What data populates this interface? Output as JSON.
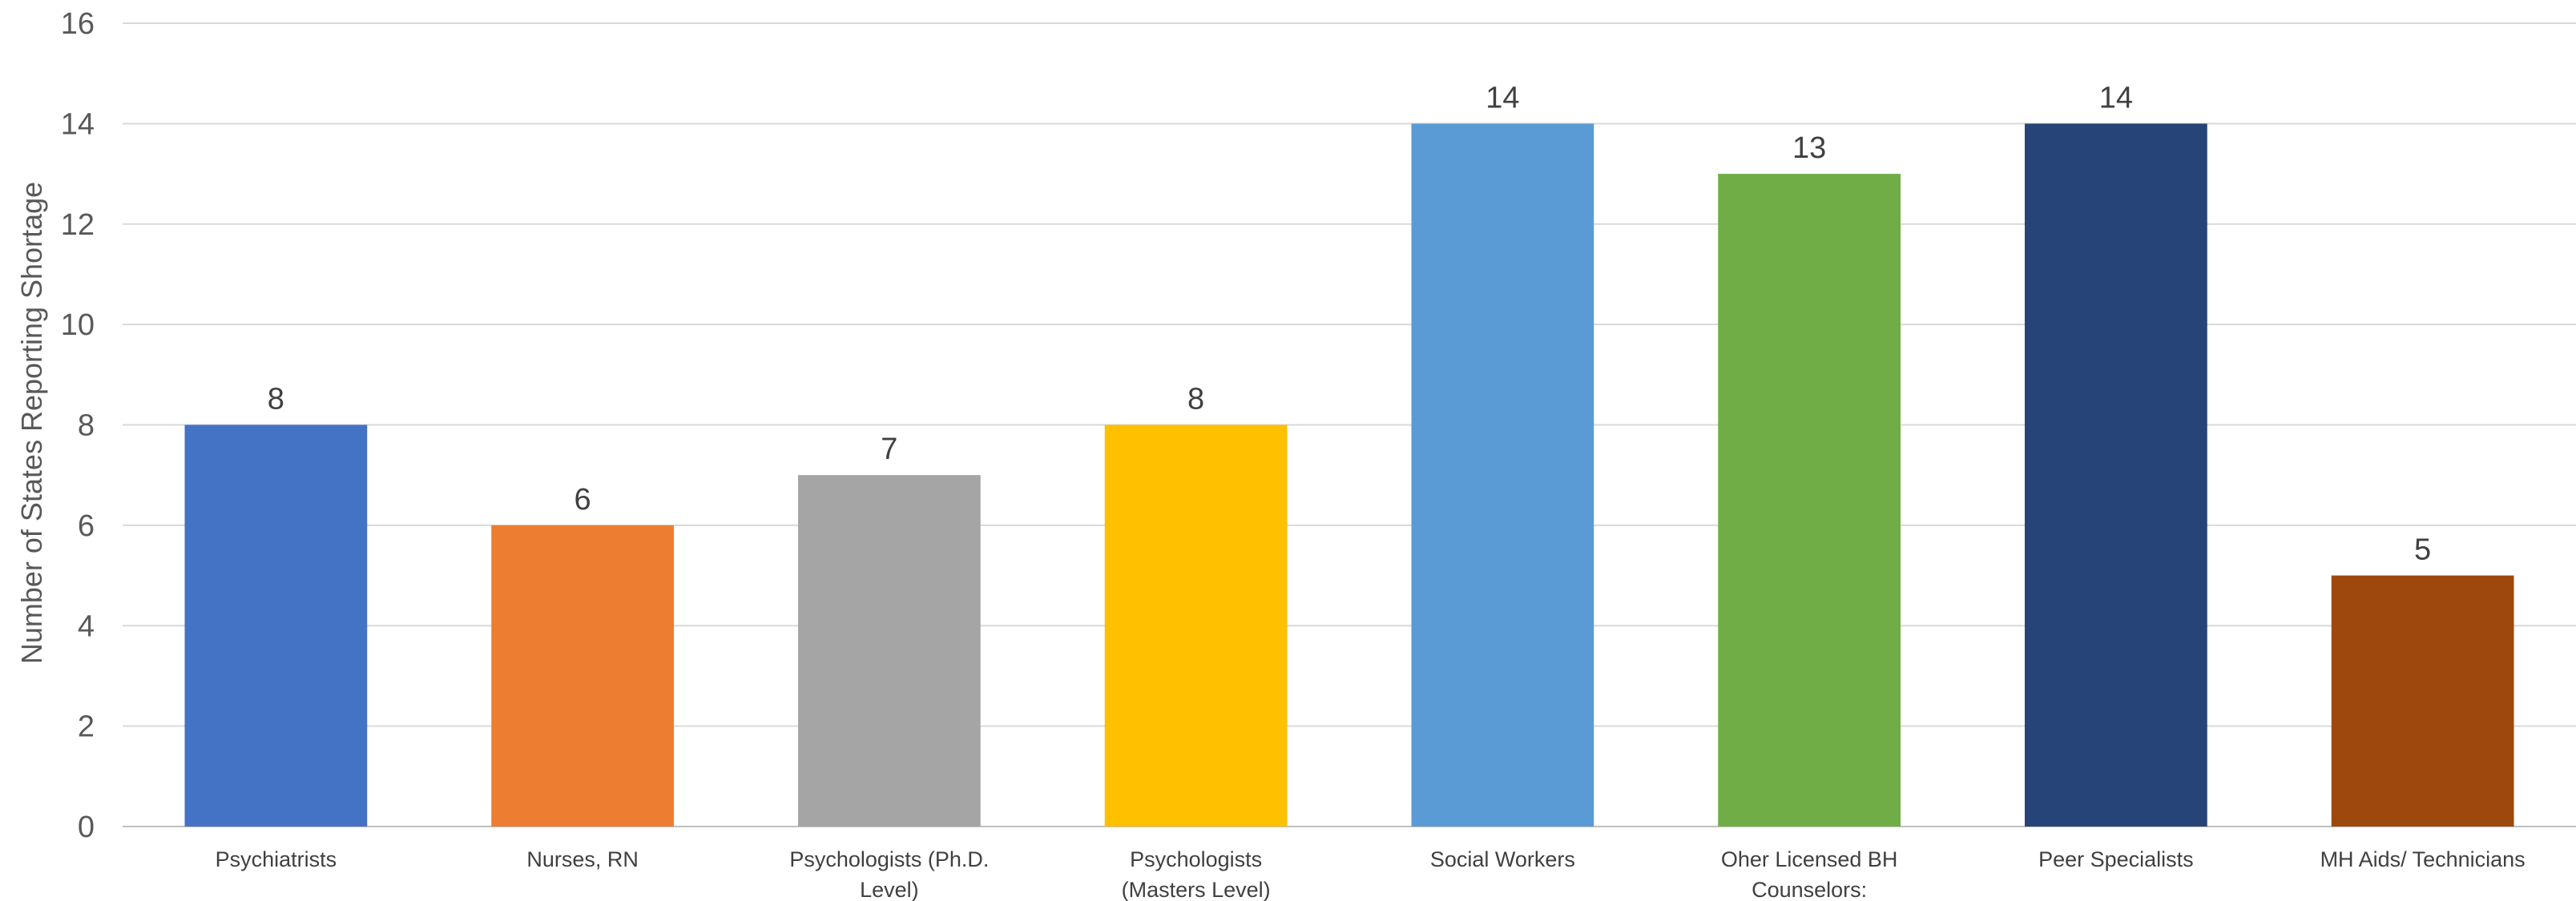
{
  "chart_data": {
    "type": "bar",
    "title": "",
    "xlabel": "",
    "ylabel": "Number of States Reporting Shortage",
    "ylim": [
      0,
      16
    ],
    "yticks": [
      0,
      2,
      4,
      6,
      8,
      10,
      12,
      14,
      16
    ],
    "grid": true,
    "legend": "none",
    "categories": [
      "Psychiatrists",
      "Nurses, RN",
      "Psychologists (Ph.D. Level)",
      "Psychologists (Masters Level)",
      "Social Workers",
      "Oher Licensed BH Counselors:",
      "Peer Specialists",
      "MH Aids/ Technicians"
    ],
    "values": [
      8,
      6,
      7,
      8,
      14,
      13,
      14,
      5
    ],
    "colors": [
      "#4472c4",
      "#ed7d31",
      "#a5a5a5",
      "#ffc000",
      "#5b9bd5",
      "#70ad47",
      "#264478",
      "#9e480e"
    ]
  }
}
